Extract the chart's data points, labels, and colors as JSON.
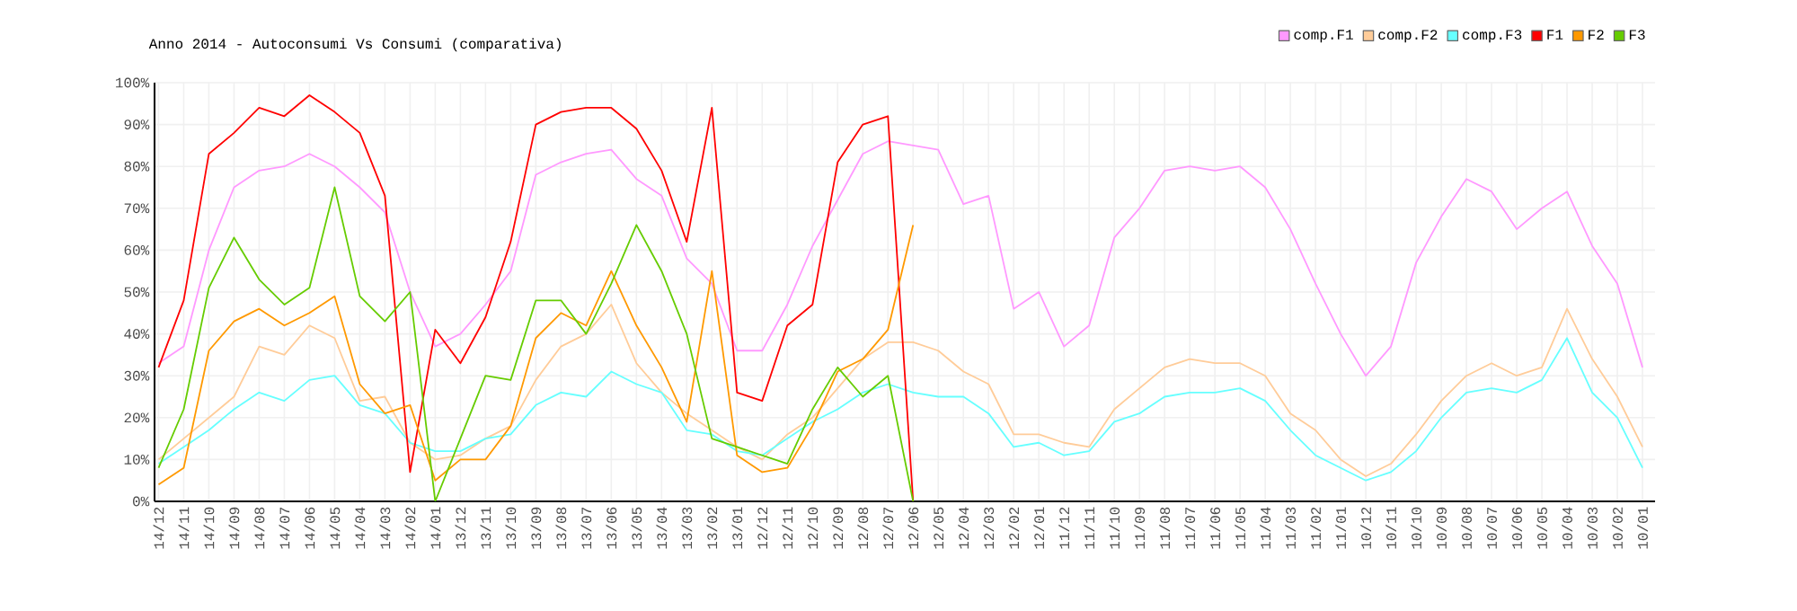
{
  "chart_data": {
    "type": "line",
    "title": "Anno 2014 - Autoconsumi Vs Consumi (comparativa)",
    "categories": [
      "14/12",
      "14/11",
      "14/10",
      "14/09",
      "14/08",
      "14/07",
      "14/06",
      "14/05",
      "14/04",
      "14/03",
      "14/02",
      "14/01",
      "13/12",
      "13/11",
      "13/10",
      "13/09",
      "13/08",
      "13/07",
      "13/06",
      "13/05",
      "13/04",
      "13/03",
      "13/02",
      "13/01",
      "12/12",
      "12/11",
      "12/10",
      "12/09",
      "12/08",
      "12/07",
      "12/06",
      "12/05",
      "12/04",
      "12/03",
      "12/02",
      "12/01",
      "11/12",
      "11/11",
      "11/10",
      "11/09",
      "11/08",
      "11/07",
      "11/06",
      "11/05",
      "11/04",
      "11/03",
      "11/02",
      "11/01",
      "10/12",
      "10/11",
      "10/10",
      "10/09",
      "10/08",
      "10/07",
      "10/06",
      "10/05",
      "10/04",
      "10/03",
      "10/02",
      "10/01"
    ],
    "series": [
      {
        "name": "comp.F1",
        "color": "#ff99ff",
        "values": [
          33,
          37,
          60,
          75,
          79,
          80,
          83,
          80,
          75,
          69,
          50,
          37,
          40,
          47,
          55,
          78,
          81,
          83,
          84,
          77,
          73,
          58,
          52,
          36,
          36,
          47,
          61,
          72,
          83,
          86,
          85,
          84,
          71,
          73,
          46,
          50,
          37,
          42,
          63,
          70,
          79,
          80,
          79,
          80,
          75,
          65,
          52,
          40,
          30,
          37,
          57,
          68,
          77,
          74,
          65,
          70,
          74,
          61,
          52,
          32
        ]
      },
      {
        "name": "comp.F2",
        "color": "#ffcc99",
        "values": [
          10,
          15,
          20,
          25,
          37,
          35,
          42,
          39,
          24,
          25,
          14,
          10,
          11,
          15,
          18,
          29,
          37,
          40,
          47,
          33,
          26,
          21,
          17,
          13,
          10,
          16,
          20,
          27,
          34,
          38,
          38,
          36,
          31,
          28,
          16,
          16,
          14,
          13,
          22,
          27,
          32,
          34,
          33,
          33,
          30,
          21,
          17,
          10,
          6,
          9,
          16,
          24,
          30,
          33,
          30,
          32,
          46,
          34,
          25,
          13
        ]
      },
      {
        "name": "comp.F3",
        "color": "#66ffff",
        "values": [
          9,
          13,
          17,
          22,
          26,
          24,
          29,
          30,
          23,
          21,
          14,
          12,
          12,
          15,
          16,
          23,
          26,
          25,
          31,
          28,
          26,
          17,
          16,
          12,
          11,
          15,
          19,
          22,
          26,
          28,
          26,
          25,
          25,
          21,
          13,
          14,
          11,
          12,
          19,
          21,
          25,
          26,
          26,
          27,
          24,
          17,
          11,
          8,
          5,
          7,
          12,
          20,
          26,
          27,
          26,
          29,
          39,
          26,
          20,
          8
        ]
      },
      {
        "name": "F1",
        "color": "#ff0000",
        "values": [
          32,
          48,
          83,
          88,
          94,
          92,
          97,
          93,
          88,
          73,
          7,
          41,
          33,
          44,
          62,
          90,
          93,
          94,
          94,
          89,
          79,
          62,
          94,
          26,
          24,
          42,
          47,
          81,
          90,
          92,
          0,
          null,
          null,
          null,
          null,
          null,
          null,
          null,
          null,
          null,
          null,
          null,
          null,
          null,
          null,
          null,
          null,
          null,
          null,
          null,
          null,
          null,
          null,
          null,
          null,
          null,
          null,
          null,
          null,
          null
        ]
      },
      {
        "name": "F2",
        "color": "#ff9900",
        "values": [
          4,
          8,
          36,
          43,
          46,
          42,
          45,
          49,
          28,
          21,
          23,
          5,
          10,
          10,
          18,
          39,
          45,
          42,
          55,
          42,
          32,
          19,
          55,
          11,
          7,
          8,
          18,
          31,
          34,
          41,
          66,
          null,
          null,
          null,
          null,
          null,
          null,
          null,
          null,
          null,
          null,
          null,
          null,
          null,
          null,
          null,
          null,
          null,
          null,
          null,
          null,
          null,
          null,
          null,
          null,
          null,
          null,
          null,
          null,
          null
        ]
      },
      {
        "name": "F3",
        "color": "#66cc00",
        "values": [
          8,
          22,
          51,
          63,
          53,
          47,
          51,
          75,
          49,
          43,
          50,
          0,
          15,
          30,
          29,
          48,
          48,
          40,
          52,
          66,
          55,
          40,
          15,
          13,
          11,
          9,
          22,
          32,
          25,
          30,
          0,
          null,
          null,
          null,
          null,
          null,
          null,
          null,
          null,
          null,
          null,
          null,
          null,
          null,
          null,
          null,
          null,
          null,
          null,
          null,
          null,
          null,
          null,
          null,
          null,
          null,
          null,
          null,
          null,
          null
        ]
      }
    ],
    "ylim": [
      0,
      100
    ],
    "yticks": [
      {
        "value": 0,
        "label": "0%"
      },
      {
        "value": 10,
        "label": "10%"
      },
      {
        "value": 20,
        "label": "20%"
      },
      {
        "value": 30,
        "label": "30%"
      },
      {
        "value": 40,
        "label": "40%"
      },
      {
        "value": 50,
        "label": "50%"
      },
      {
        "value": 60,
        "label": "60%"
      },
      {
        "value": 70,
        "label": "70%"
      },
      {
        "value": 80,
        "label": "80%"
      },
      {
        "value": 90,
        "label": "90%"
      },
      {
        "value": 100,
        "label": "100%"
      }
    ],
    "grid": true,
    "legend": "top right",
    "marker": "none",
    "line_style": "solid"
  }
}
